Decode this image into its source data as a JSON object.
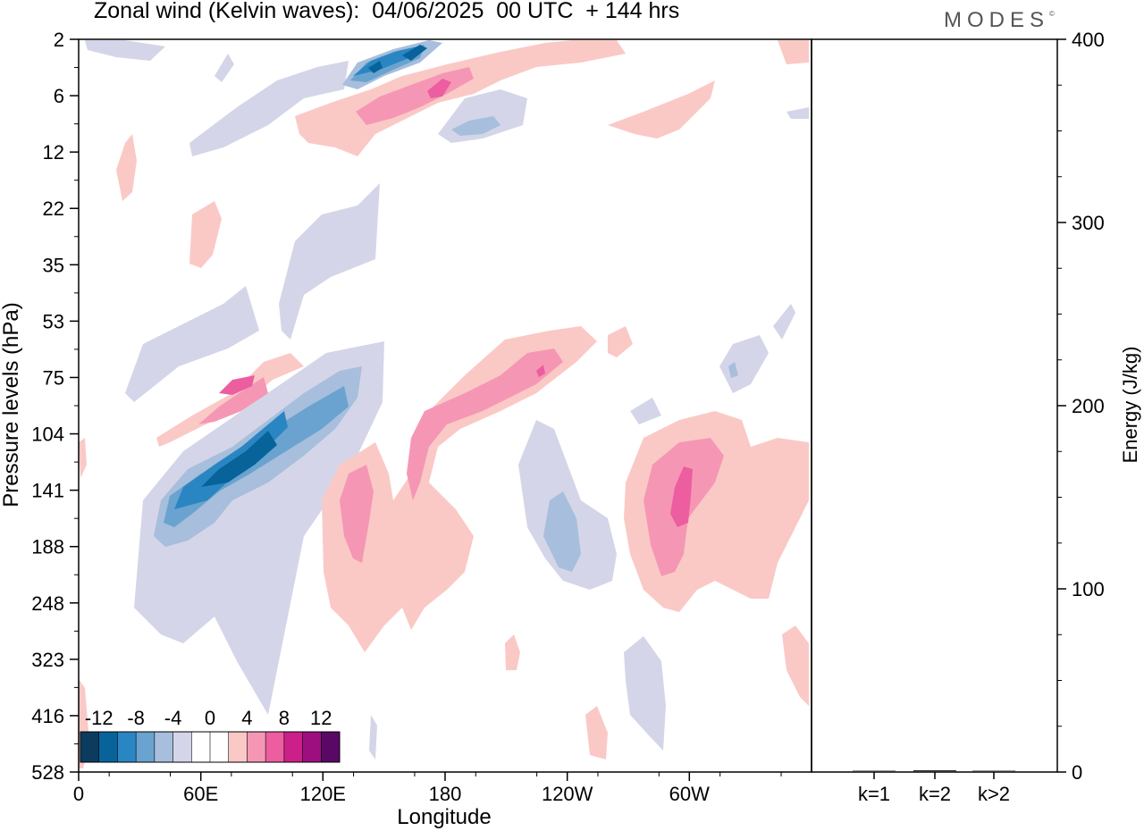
{
  "header": {
    "title": "Zonal wind (Kelvin waves):  04/06/2025  00 UTC  + 144 hrs",
    "brand": "MODES",
    "brand_mark": "©"
  },
  "chart_data": [
    {
      "type": "heatmap",
      "title": "Zonal wind (Kelvin waves):  04/06/2025  00 UTC  + 144 hrs",
      "xlabel": "Longitude",
      "ylabel": "Pressure levels (hPa)",
      "x_ticks": [
        "0",
        "60E",
        "120E",
        "180",
        "120W",
        "60W"
      ],
      "y_ticks": [
        "2",
        "6",
        "12",
        "22",
        "35",
        "53",
        "75",
        "104",
        "141",
        "188",
        "248",
        "323",
        "416",
        "528"
      ],
      "colorbar": {
        "labels": [
          "-12",
          "-8",
          "-4",
          "0",
          "4",
          "8",
          "12"
        ],
        "colors": [
          "#0b3b5e",
          "#08639a",
          "#2a86c2",
          "#6aa3cf",
          "#a7bedc",
          "#d4d5e8",
          "#ffffff",
          "#ffffff",
          "#fac9c6",
          "#f597b4",
          "#ec5ea0",
          "#cd1f8a",
          "#9d0f7f",
          "#5a0866"
        ]
      }
    },
    {
      "type": "bar",
      "categories": [
        "k=1",
        "k=2",
        "k>2"
      ],
      "values": [
        0.5,
        1.0,
        0.6
      ],
      "ylabel": "Energy (J/kg)",
      "y_ticks": [
        "0",
        "100",
        "200",
        "300",
        "400"
      ],
      "ylim": [
        0,
        400
      ]
    }
  ]
}
